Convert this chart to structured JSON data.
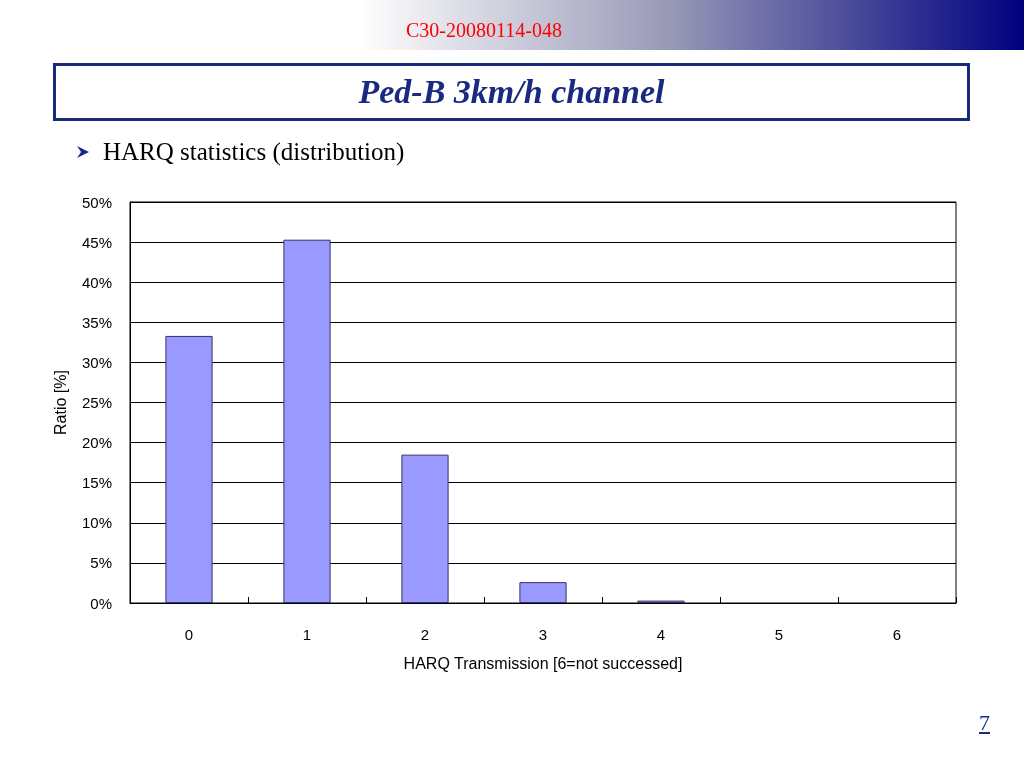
{
  "chart_data": {
    "type": "bar",
    "title": "Ped-B 3km/h channel",
    "subtitle": "HARQ statistics (distribution)",
    "xlabel": "HARQ Transmission [6=not successed]",
    "ylabel": "Ratio [%]",
    "annotations": [
      "C30-20080114-048",
      "7"
    ],
    "categories": [
      "0",
      "1",
      "2",
      "3",
      "4",
      "5",
      "6"
    ],
    "values": [
      33.3,
      45.3,
      18.5,
      2.6,
      0.3,
      0,
      0
    ],
    "color": "#9999ff",
    "ylim": [
      0,
      50
    ],
    "yticks": [
      {
        "value": 0,
        "label": "0%"
      },
      {
        "value": 5,
        "label": "5%"
      },
      {
        "value": 10,
        "label": "10%"
      },
      {
        "value": 15,
        "label": "15%"
      },
      {
        "value": 20,
        "label": "20%"
      },
      {
        "value": 25,
        "label": "25%"
      },
      {
        "value": 30,
        "label": "30%"
      },
      {
        "value": 35,
        "label": "35%"
      },
      {
        "value": 40,
        "label": "40%"
      },
      {
        "value": 45,
        "label": "45%"
      },
      {
        "value": 50,
        "label": "50%"
      }
    ],
    "grid": "y"
  }
}
